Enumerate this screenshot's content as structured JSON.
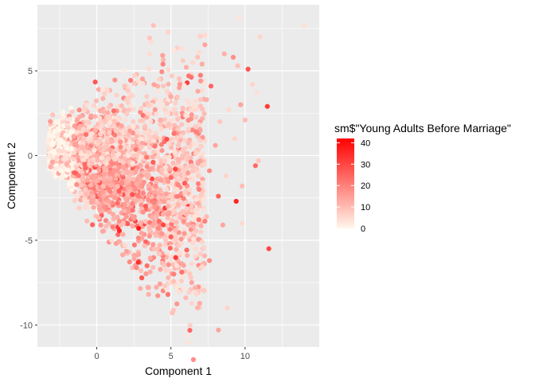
{
  "chart_data": {
    "type": "scatter",
    "title": "",
    "xlabel": "Component 1",
    "ylabel": "Component 2",
    "xlim": [
      -4.0,
      15.0
    ],
    "ylim": [
      -11.3,
      8.9
    ],
    "x_ticks": [
      0,
      5,
      10
    ],
    "y_ticks": [
      -10,
      -5,
      0,
      5
    ],
    "x_tick_labels": [
      "0",
      "5",
      "10"
    ],
    "y_tick_labels": [
      "-10",
      "-5",
      "0",
      "5"
    ],
    "grid": true,
    "panel_background": "#EBEBEB",
    "grid_color": "#FFFFFF",
    "legend": {
      "title": "sm$\"Young Adults Before Marriage\"",
      "placement": "right",
      "range": [
        0,
        42
      ],
      "breaks": [
        0,
        10,
        20,
        30,
        40
      ],
      "break_labels": [
        "0",
        "10",
        "20",
        "30",
        "40"
      ],
      "color_low": "#FFF7EC",
      "color_high": "#FF0000"
    },
    "point_cloud_description": "Dense cloud of several thousand points forming a wedge from about x=-3.2 (y range -1 to 2.5) widening to the right; majority between x=-3 and x=6, y between -6 and 6; color mostly pale (0-10) with more saturated red points concentrated around x=0..4, y=-1..-3.",
    "series": [
      {
        "values": [
          {
            "x": 14.0,
            "y": 7.7,
            "v": 4
          },
          {
            "x": 9.6,
            "y": 8.1,
            "v": 3
          },
          {
            "x": 11.0,
            "y": 7.0,
            "v": 6
          },
          {
            "x": 7.3,
            "y": 7.1,
            "v": 5
          },
          {
            "x": 8.6,
            "y": 6.0,
            "v": 12
          },
          {
            "x": 9.2,
            "y": 5.8,
            "v": 18
          },
          {
            "x": 9.5,
            "y": 5.3,
            "v": 9
          },
          {
            "x": 10.2,
            "y": 5.1,
            "v": 28
          },
          {
            "x": 10.5,
            "y": 4.2,
            "v": 6
          },
          {
            "x": 10.8,
            "y": 3.7,
            "v": 4
          },
          {
            "x": 11.5,
            "y": 2.9,
            "v": 32
          },
          {
            "x": 10.0,
            "y": 2.1,
            "v": 10
          },
          {
            "x": 9.7,
            "y": 3.0,
            "v": 14
          },
          {
            "x": 8.9,
            "y": 2.7,
            "v": 5
          },
          {
            "x": 7.7,
            "y": 4.1,
            "v": 25
          },
          {
            "x": 7.0,
            "y": 4.4,
            "v": 16
          },
          {
            "x": 6.8,
            "y": 5.8,
            "v": 9
          },
          {
            "x": 5.8,
            "y": 6.3,
            "v": 4
          },
          {
            "x": 5.2,
            "y": 6.2,
            "v": 3
          },
          {
            "x": 6.2,
            "y": 4.7,
            "v": 22
          },
          {
            "x": 7.4,
            "y": 3.3,
            "v": 12
          },
          {
            "x": 8.3,
            "y": 2.0,
            "v": 8
          },
          {
            "x": 8.0,
            "y": 0.6,
            "v": 14
          },
          {
            "x": 9.3,
            "y": 1.0,
            "v": 6
          },
          {
            "x": 10.7,
            "y": -0.6,
            "v": 24
          },
          {
            "x": 10.9,
            "y": -0.3,
            "v": 8
          },
          {
            "x": 9.8,
            "y": -1.8,
            "v": 10
          },
          {
            "x": 8.7,
            "y": -1.2,
            "v": 6
          },
          {
            "x": 7.6,
            "y": -0.9,
            "v": 18
          },
          {
            "x": 6.4,
            "y": -0.6,
            "v": 9
          },
          {
            "x": 6.9,
            "y": -2.0,
            "v": 20
          },
          {
            "x": 8.2,
            "y": -2.4,
            "v": 26
          },
          {
            "x": 9.4,
            "y": -2.7,
            "v": 36
          },
          {
            "x": 9.8,
            "y": -4.0,
            "v": 5
          },
          {
            "x": 8.5,
            "y": -4.1,
            "v": 14
          },
          {
            "x": 7.4,
            "y": -3.6,
            "v": 10
          },
          {
            "x": 6.4,
            "y": -3.0,
            "v": 8
          },
          {
            "x": 5.9,
            "y": -4.6,
            "v": 16
          },
          {
            "x": 7.1,
            "y": -5.1,
            "v": 6
          },
          {
            "x": 6.1,
            "y": -5.9,
            "v": 12
          },
          {
            "x": 7.6,
            "y": -6.2,
            "v": 18
          },
          {
            "x": 11.6,
            "y": -5.5,
            "v": 30
          },
          {
            "x": 6.4,
            "y": -7.5,
            "v": 14
          },
          {
            "x": 5.2,
            "y": -7.0,
            "v": 20
          },
          {
            "x": 4.6,
            "y": -7.7,
            "v": 8
          },
          {
            "x": 4.8,
            "y": -8.2,
            "v": 22
          },
          {
            "x": 6.0,
            "y": -8.4,
            "v": 10
          },
          {
            "x": 3.5,
            "y": -7.8,
            "v": 12
          },
          {
            "x": 8.8,
            "y": -9.0,
            "v": 6
          },
          {
            "x": 8.2,
            "y": -10.3,
            "v": 14
          },
          {
            "x": 2.8,
            "y": -6.3,
            "v": 34
          },
          {
            "x": 3.8,
            "y": -6.6,
            "v": 10
          },
          {
            "x": 4.2,
            "y": -5.8,
            "v": 8
          },
          {
            "x": 1.9,
            "y": -5.3,
            "v": 5
          },
          {
            "x": 1.0,
            "y": -5.0,
            "v": 4
          },
          {
            "x": 5.4,
            "y": -6.5,
            "v": 4
          },
          {
            "x": 5.0,
            "y": -4.8,
            "v": 26
          },
          {
            "x": 4.6,
            "y": -3.1,
            "v": 32
          },
          {
            "x": 4.8,
            "y": -3.0,
            "v": 12
          },
          {
            "x": 3.9,
            "y": -2.2,
            "v": 14
          },
          {
            "x": 5.5,
            "y": -2.4,
            "v": 20
          },
          {
            "x": 5.3,
            "y": -0.8,
            "v": 30
          },
          {
            "x": 5.0,
            "y": -1.3,
            "v": 24
          },
          {
            "x": 4.4,
            "y": 0.3,
            "v": 16
          },
          {
            "x": 3.8,
            "y": -0.4,
            "v": 26
          },
          {
            "x": 3.2,
            "y": -1.0,
            "v": 10
          },
          {
            "x": 2.4,
            "y": -2.3,
            "v": 28
          },
          {
            "x": 1.7,
            "y": -1.6,
            "v": 18
          },
          {
            "x": 1.4,
            "y": -2.8,
            "v": 24
          },
          {
            "x": 2.0,
            "y": -3.6,
            "v": 16
          },
          {
            "x": 0.5,
            "y": -1.1,
            "v": 14
          },
          {
            "x": 0.8,
            "y": -2.0,
            "v": 20
          },
          {
            "x": 3.0,
            "y": 0.5,
            "v": 8
          },
          {
            "x": 4.3,
            "y": 2.1,
            "v": 12
          },
          {
            "x": 3.4,
            "y": 3.1,
            "v": 8
          },
          {
            "x": 4.2,
            "y": 4.5,
            "v": 6
          },
          {
            "x": 5.6,
            "y": 4.2,
            "v": 16
          },
          {
            "x": 5.8,
            "y": 2.8,
            "v": 10
          },
          {
            "x": 6.7,
            "y": 1.4,
            "v": 20
          },
          {
            "x": 5.2,
            "y": 1.3,
            "v": 22
          },
          {
            "x": 2.8,
            "y": 4.4,
            "v": 4
          },
          {
            "x": 1.8,
            "y": 5.0,
            "v": 2
          },
          {
            "x": 0.4,
            "y": 3.9,
            "v": 3
          },
          {
            "x": -0.7,
            "y": 3.0,
            "v": 4
          },
          {
            "x": -2.3,
            "y": 2.2,
            "v": 2
          },
          {
            "x": -3.3,
            "y": 0.8,
            "v": 2
          },
          {
            "x": -3.1,
            "y": 0.0,
            "v": 3
          },
          {
            "x": -2.7,
            "y": -0.8,
            "v": 2
          }
        ]
      }
    ]
  }
}
